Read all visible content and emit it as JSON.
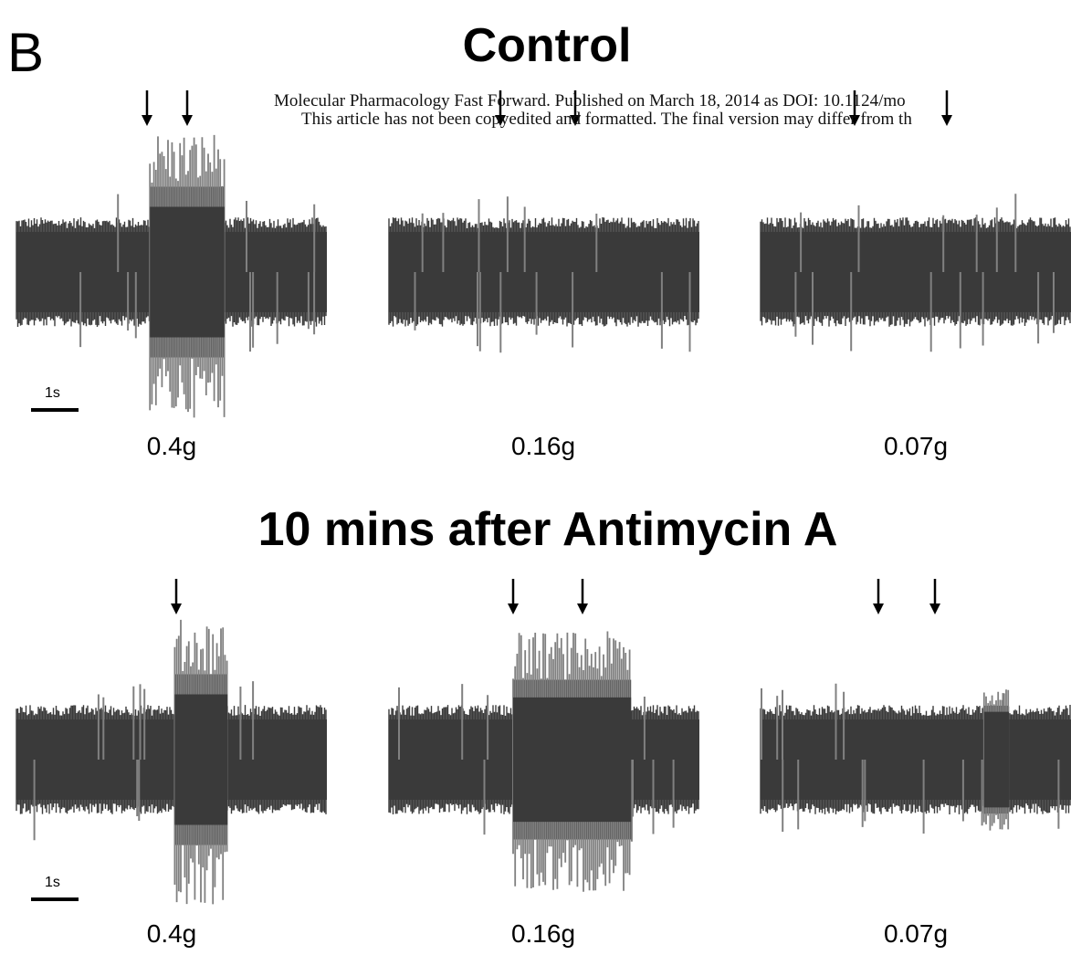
{
  "figure": {
    "panel_letter": "B",
    "watermark": {
      "line1": "Molecular Pharmacology Fast Forward. Published on March 18, 2014 as DOI: 10.1124/mo",
      "line2": "This article has not been copyedited and formatted. The final version may differ from th"
    },
    "colors": {
      "trace_dark": "#3a3a3a",
      "trace_spike": "#808080",
      "arrow": "#000000"
    },
    "sections": [
      {
        "title": "Control",
        "scale_bar_label": "1s",
        "recordings": [
          {
            "weight_label": "0.4g",
            "response_strength": 1.0,
            "stimulus_arrow_count": 2
          },
          {
            "weight_label": "0.16g",
            "response_strength": 0.0,
            "stimulus_arrow_count": 2
          },
          {
            "weight_label": "0.07g",
            "response_strength": 0.0,
            "stimulus_arrow_count": 2
          }
        ]
      },
      {
        "title": "10 mins after Antimycin A",
        "scale_bar_label": "1s",
        "recordings": [
          {
            "weight_label": "0.4g",
            "response_strength": 1.0,
            "stimulus_arrow_count": 1
          },
          {
            "weight_label": "0.16g",
            "response_strength": 0.85,
            "stimulus_arrow_count": 2
          },
          {
            "weight_label": "0.07g",
            "response_strength": 0.15,
            "stimulus_arrow_count": 2
          }
        ]
      }
    ]
  }
}
